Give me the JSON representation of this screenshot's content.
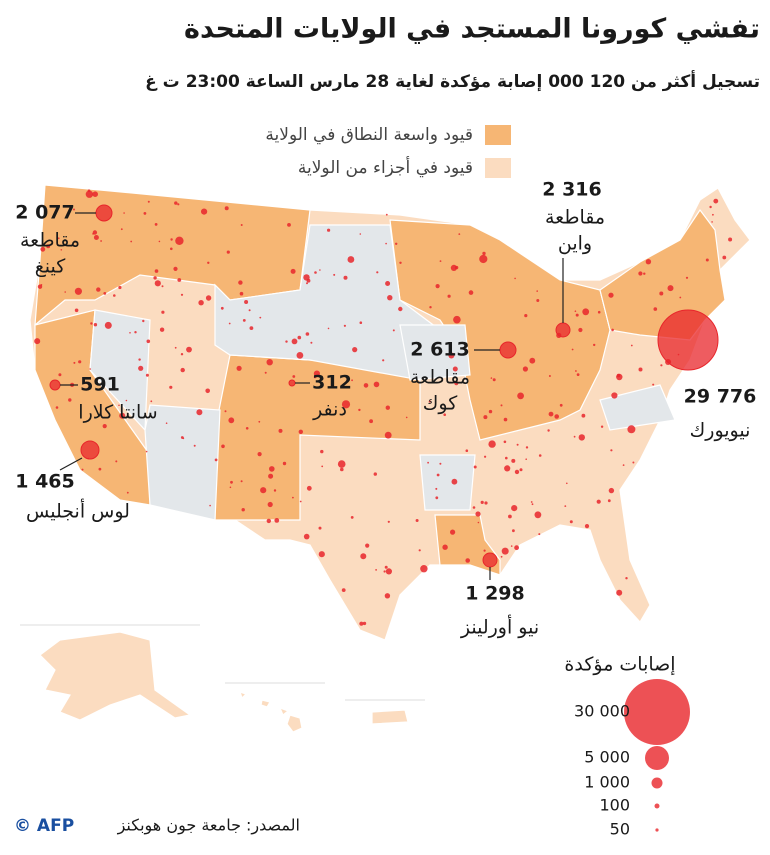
{
  "header": {
    "title": "تفشي كورونا المستجد في الولايات المتحدة",
    "subtitle": "تسجيل أكثر من 120 000 إصابة مؤكدة لغاية 28 مارس الساعة 23:00 ت غ"
  },
  "legend": {
    "items": [
      {
        "label": "قيود واسعة النطاق في الولاية",
        "color": "#f6b674"
      },
      {
        "label": "قيود في أجزاء من الولاية",
        "color": "#fbdcc0"
      }
    ]
  },
  "callouts": [
    {
      "value": "2 077",
      "label": [
        "مقاطعة",
        "كينغ"
      ]
    },
    {
      "value": "2 316",
      "label": [
        "مقاطعة",
        "واين"
      ]
    },
    {
      "value": "2 613",
      "label": [
        "مقاطعة",
        "كوك"
      ]
    },
    {
      "value": "29 776",
      "label": [
        "نيويورك"
      ]
    },
    {
      "value": "591",
      "label": [
        "سانتا كلارا"
      ]
    },
    {
      "value": "312",
      "label": [
        "دنفر"
      ]
    },
    {
      "value": "1 465",
      "label": [
        "لوس أنجليس"
      ]
    },
    {
      "value": "1 298",
      "label": [
        "نيو أورلينز"
      ]
    }
  ],
  "size_legend": {
    "title": "إصابات مؤكدة",
    "items": [
      "30 000",
      "5 000",
      "1 000",
      "100",
      "50"
    ]
  },
  "footer": {
    "source": "المصدر: جامعة جون هوبكنز",
    "credit": "© AFP"
  }
}
